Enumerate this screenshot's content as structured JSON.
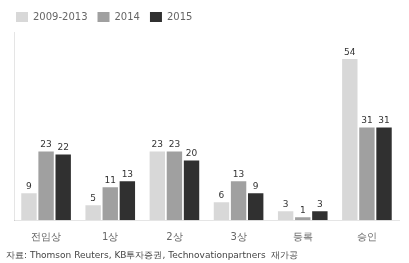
{
  "chart_data": {
    "type": "bar",
    "categories": [
      "전임상",
      "1상",
      "2상",
      "3상",
      "등록",
      "승인"
    ],
    "series": [
      {
        "name": "2009-2013",
        "color": "#d8d8d8",
        "values": [
          9,
          5,
          23,
          6,
          3,
          54
        ]
      },
      {
        "name": "2014",
        "color": "#a0a0a0",
        "values": [
          23,
          11,
          23,
          13,
          1,
          31
        ]
      },
      {
        "name": "2015",
        "color": "#303030",
        "values": [
          22,
          13,
          20,
          9,
          3,
          31
        ]
      }
    ],
    "ylim": [
      0,
      63
    ],
    "grid": false,
    "legend": "upper left",
    "data_labels": true,
    "tick_labels": "x",
    "annotations": [
      "자료: Thomson Reuters, KB투자증권, Technovationpartners  재가공"
    ]
  }
}
